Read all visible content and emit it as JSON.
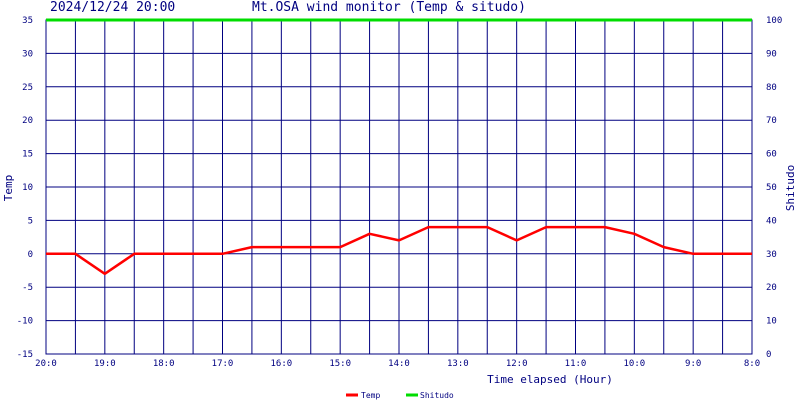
{
  "header": {
    "datetime": "2024/12/24 20:00",
    "title": "Mt.OSA wind monitor (Temp & situdo)"
  },
  "chart_data": {
    "type": "line",
    "title": "Mt.OSA wind monitor (Temp & situdo)",
    "xlabel": "Time elapsed (Hour)",
    "ylabel": "Temp",
    "y2label": "Shitudo",
    "ylim": [
      -15,
      35
    ],
    "y2lim": [
      0,
      100
    ],
    "yticks": [
      -15,
      -10,
      -5,
      0,
      5,
      10,
      15,
      20,
      25,
      30,
      35
    ],
    "y2ticks": [
      0,
      10,
      20,
      30,
      40,
      50,
      60,
      70,
      80,
      90,
      100
    ],
    "x_tick_labels": [
      "20:0",
      "19:0",
      "18:0",
      "17:0",
      "16:0",
      "15:0",
      "14:0",
      "13:0",
      "12:0",
      "11:0",
      "10:0",
      "9:0",
      "8:0"
    ],
    "grid": true,
    "legend_position": "bottom-center",
    "x": [
      0,
      0.5,
      1,
      1.5,
      2,
      2.5,
      3,
      3.5,
      4,
      4.5,
      5,
      5.5,
      6,
      6.5,
      7,
      7.5,
      8,
      8.5,
      9,
      9.5,
      10,
      10.5,
      11,
      11.5,
      12
    ],
    "series": [
      {
        "name": "Temp",
        "axis": "left",
        "color": "#ff0000",
        "values": [
          0,
          0,
          -3,
          0,
          0,
          0,
          0,
          1,
          1,
          1,
          1,
          3,
          2,
          4,
          4,
          4,
          2,
          4,
          4,
          4,
          3,
          1,
          0,
          0,
          0
        ]
      },
      {
        "name": "Shitudo",
        "axis": "right",
        "color": "#00dd00",
        "values": [
          100,
          100,
          100,
          100,
          100,
          100,
          100,
          100,
          100,
          100,
          100,
          100,
          100,
          100,
          100,
          100,
          100,
          100,
          100,
          100,
          100,
          100,
          100,
          100,
          100
        ]
      }
    ]
  }
}
